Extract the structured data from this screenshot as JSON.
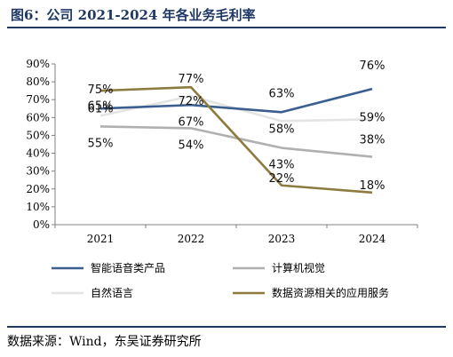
{
  "header": {
    "title": "图6：公司 2021-2024 年各业务毛利率"
  },
  "footer": {
    "source": "数据来源：Wind，东吴证券研究所"
  },
  "chart_data": {
    "type": "line",
    "title": "图6：公司 2021-2024 年各业务毛利率",
    "xlabel": "",
    "ylabel": "",
    "categories": [
      "2021",
      "2022",
      "2023",
      "2024"
    ],
    "ylim": [
      0,
      90
    ],
    "yticks": [
      "0%",
      "10%",
      "20%",
      "30%",
      "40%",
      "50%",
      "60%",
      "70%",
      "80%",
      "90%"
    ],
    "grid": false,
    "legend_position": "bottom",
    "series": [
      {
        "name": "智能语音类产品",
        "color": "#3a5f8f",
        "values": [
          65,
          67,
          63,
          76
        ],
        "labels": [
          "65%",
          "67%",
          "63%",
          "76%"
        ]
      },
      {
        "name": "计算机视觉",
        "color": "#b0b0b0",
        "values": [
          55,
          54,
          43,
          38
        ],
        "labels": [
          "55%",
          "54%",
          "43%",
          "38%"
        ]
      },
      {
        "name": "自然语言",
        "color": "#e4e4e4",
        "values": [
          61,
          72,
          58,
          59
        ],
        "labels": [
          "61%",
          "72%",
          "58%",
          "59%"
        ]
      },
      {
        "name": "数据资源相关的应用服务",
        "color": "#8c7a3e",
        "values": [
          75,
          77,
          22,
          18
        ],
        "labels": [
          "75%",
          "77%",
          "22%",
          "18%"
        ]
      }
    ]
  }
}
